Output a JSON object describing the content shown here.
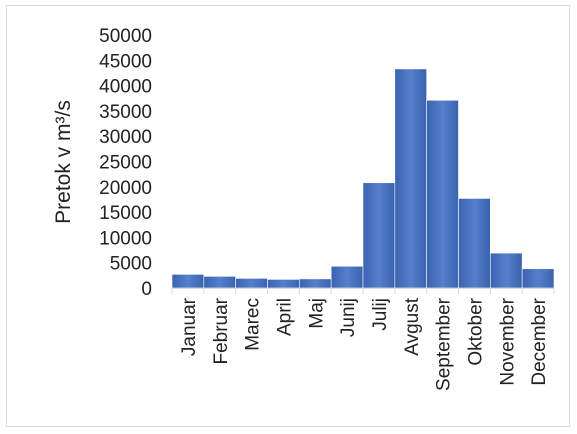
{
  "chart_data": {
    "type": "bar",
    "title": "",
    "xlabel": "",
    "ylabel": "Pretok v m³/s",
    "ylim": [
      0,
      50000
    ],
    "yticks": [
      "50000",
      "45000",
      "40000",
      "35000",
      "30000",
      "25000",
      "20000",
      "15000",
      "10000",
      "5000",
      "0"
    ],
    "categories": [
      "Januar",
      "Februar",
      "Marec",
      "April",
      "Maj",
      "Junij",
      "Julij",
      "Avgust",
      "September",
      "Oktober",
      "November",
      "December"
    ],
    "values": [
      2700,
      2300,
      1900,
      1700,
      1800,
      4300,
      20800,
      43300,
      37100,
      17700,
      6900,
      3800
    ],
    "grid": false,
    "legend": "none",
    "bar_color": "#4472c4"
  }
}
